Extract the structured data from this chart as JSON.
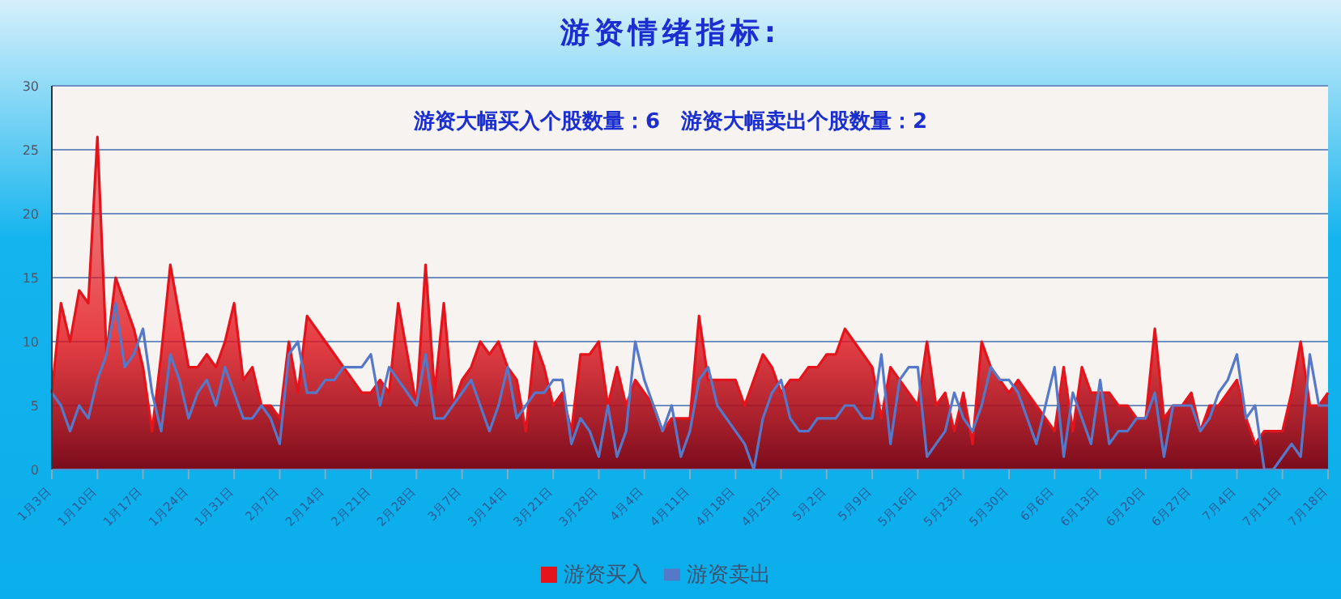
{
  "chart_data": {
    "type": "line",
    "title": "游资情绪指标:",
    "annotations": [
      "游资大幅买入个股数量：6　游资大幅卖出个股数量：2"
    ],
    "categories": [
      "1月3日",
      null,
      null,
      null,
      null,
      "1月10日",
      null,
      null,
      null,
      null,
      "1月17日",
      null,
      null,
      null,
      null,
      "1月24日",
      null,
      null,
      null,
      null,
      "1月31日",
      null,
      null,
      null,
      null,
      "2月7日",
      null,
      null,
      null,
      null,
      "2月14日",
      null,
      null,
      null,
      null,
      "2月21日",
      null,
      null,
      null,
      null,
      "2月28日",
      null,
      null,
      null,
      null,
      "3月7日",
      null,
      null,
      null,
      null,
      "3月14日",
      null,
      null,
      null,
      null,
      "3月21日",
      null,
      null,
      null,
      null,
      "3月28日",
      null,
      null,
      null,
      null,
      "4月4日",
      null,
      null,
      null,
      null,
      "4月11日",
      null,
      null,
      null,
      null,
      "4月18日",
      null,
      null,
      null,
      null,
      "4月25日",
      null,
      null,
      null,
      null,
      "5月2日",
      null,
      null,
      null,
      null,
      "5月9日",
      null,
      null,
      null,
      null,
      "5月16日",
      null,
      null,
      null,
      null,
      "5月23日",
      null,
      null,
      null,
      null,
      "5月30日",
      null,
      null,
      null,
      null,
      "6月6日",
      null,
      null,
      null,
      null,
      "6月13日",
      null,
      null,
      null,
      null,
      "6月20日",
      null,
      null,
      null,
      null,
      "6月27日",
      null,
      null,
      null,
      null,
      "7月4日",
      null,
      null,
      null,
      null,
      "7月11日",
      null,
      null,
      null,
      null,
      "7月18日"
    ],
    "series": [
      {
        "name": "游资买入",
        "type": "area",
        "color": "#e3141b",
        "values": [
          6,
          13,
          10,
          14,
          13,
          26,
          9,
          15,
          13,
          11,
          8,
          3,
          9,
          16,
          12,
          8,
          8,
          9,
          8,
          10,
          13,
          7,
          8,
          5,
          5,
          4,
          10,
          6,
          12,
          11,
          10,
          9,
          8,
          7,
          6,
          6,
          7,
          6,
          13,
          9,
          5,
          16,
          6,
          13,
          5,
          7,
          8,
          10,
          9,
          10,
          8,
          7,
          3,
          10,
          8,
          5,
          6,
          3,
          9,
          9,
          10,
          5,
          8,
          5,
          7,
          6,
          5,
          3,
          4,
          4,
          4,
          12,
          7,
          7,
          7,
          7,
          5,
          7,
          9,
          8,
          6,
          7,
          7,
          8,
          8,
          9,
          9,
          11,
          10,
          9,
          8,
          4,
          8,
          7,
          6,
          5,
          10,
          5,
          6,
          3,
          6,
          2,
          10,
          8,
          7,
          6,
          7,
          6,
          5,
          4,
          3,
          8,
          3,
          8,
          6,
          6,
          6,
          5,
          5,
          4,
          4,
          11,
          4,
          5,
          5,
          6,
          3,
          5,
          5,
          6,
          7,
          4,
          2,
          3,
          3,
          3,
          6,
          10,
          5,
          5,
          6
        ]
      },
      {
        "name": "游资卖出",
        "color": "#5578c8",
        "values": [
          6,
          5,
          3,
          5,
          4,
          7,
          9,
          13,
          8,
          9,
          11,
          6,
          3,
          9,
          7,
          4,
          6,
          7,
          5,
          8,
          6,
          4,
          4,
          5,
          4,
          2,
          9,
          10,
          6,
          6,
          7,
          7,
          8,
          8,
          8,
          9,
          5,
          8,
          7,
          6,
          5,
          9,
          4,
          4,
          5,
          6,
          7,
          5,
          3,
          5,
          8,
          4,
          5,
          6,
          6,
          7,
          7,
          2,
          4,
          3,
          1,
          5,
          1,
          3,
          10,
          7,
          5,
          3,
          5,
          1,
          3,
          7,
          8,
          5,
          4,
          3,
          2,
          0,
          4,
          6,
          7,
          4,
          3,
          3,
          4,
          4,
          4,
          5,
          5,
          4,
          4,
          9,
          2,
          7,
          8,
          8,
          1,
          2,
          3,
          6,
          4,
          3,
          5,
          8,
          7,
          7,
          6,
          4,
          2,
          5,
          8,
          1,
          6,
          4,
          2,
          7,
          2,
          3,
          3,
          4,
          4,
          6,
          1,
          5,
          5,
          5,
          3,
          4,
          6,
          7,
          9,
          4,
          5,
          0,
          0,
          1,
          2,
          1,
          9,
          5,
          5
        ]
      }
    ],
    "ylim": [
      0,
      30
    ],
    "yticks": [
      0,
      5,
      10,
      15,
      20,
      25,
      30
    ],
    "grid": "y",
    "legend": "bottom",
    "marker": "none",
    "line_style": "solid"
  }
}
